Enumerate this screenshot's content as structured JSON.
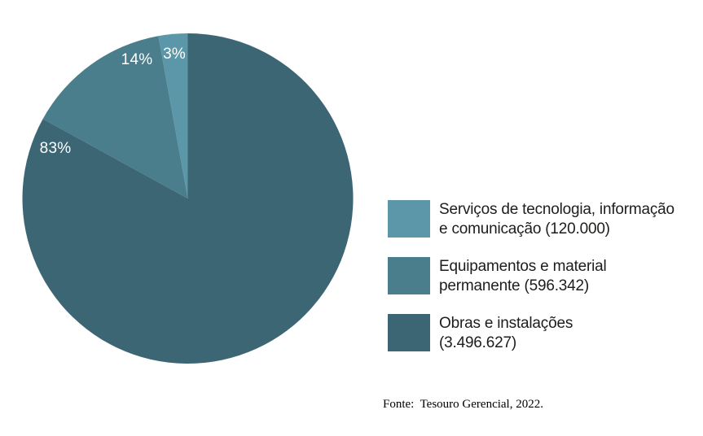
{
  "chart_data": {
    "type": "pie",
    "title": "",
    "legend_position": "right-middle",
    "start_angle": "12-oclock",
    "slice_order_from_top": "counterclockwise",
    "slices": [
      {
        "label": "Serviços de tecnologia, informação e comunicação",
        "value": 120000,
        "value_text": "120.000",
        "percent_label": "3%",
        "color": "#5b97a8",
        "legend_lines": [
          "Serviços de tecnologia, informação",
          "e comunicação (120.000)"
        ]
      },
      {
        "label": "Equipamentos e material permanente",
        "value": 596342,
        "value_text": "596.342",
        "percent_label": "14%",
        "color": "#4b7e8c",
        "legend_lines": [
          "Equipamentos e material",
          "permanente (596.342)"
        ]
      },
      {
        "label": "Obras e instalações",
        "value": 3496627,
        "value_text": "3.496.627",
        "percent_label": "83%",
        "color": "#3d6675",
        "legend_lines": [
          "Obras e instalações",
          "(3.496.627)"
        ]
      }
    ],
    "source_note": "Fonte:  Tesouro Gerencial, 2022."
  },
  "colors": {
    "background": "#ffffff",
    "percent_label_text": "#ffffff",
    "legend_text": "#1d1d1b",
    "source_text": "#000000"
  }
}
